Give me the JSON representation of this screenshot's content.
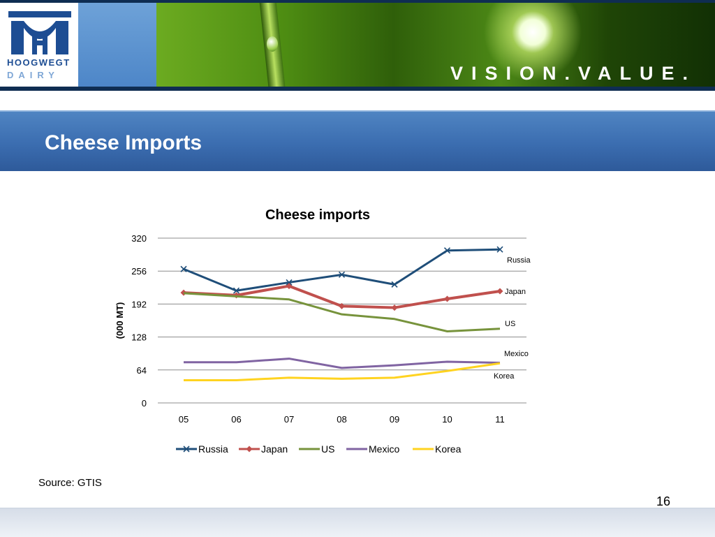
{
  "header": {
    "logo_line1": "HOOGWEGT",
    "logo_line2": "DAIRY",
    "tagline": "VISION.VALUE."
  },
  "slide": {
    "title": "Cheese Imports",
    "source": "Source: GTIS",
    "page_number": "16"
  },
  "colors": {
    "banner": "#0f2d52",
    "title_bar": "#3b6db0",
    "Russia": "#1f4e79",
    "Japan": "#c0504d",
    "US": "#77933c",
    "Mexico": "#8064a2",
    "Korea": "#ffd320"
  },
  "chart_data": {
    "type": "line",
    "title": "Cheese imports",
    "ylabel": "(000 MT)",
    "xlabel": "",
    "categories": [
      "05",
      "06",
      "07",
      "08",
      "09",
      "10",
      "11"
    ],
    "ylim": [
      0,
      320
    ],
    "yticks": [
      "0",
      "64",
      "128",
      "192",
      "256",
      "320"
    ],
    "grid": true,
    "legend_position": "bottom",
    "series": [
      {
        "name": "Russia",
        "marker": "x",
        "values": [
          260,
          218,
          234,
          249,
          230,
          296,
          298
        ]
      },
      {
        "name": "Japan",
        "marker": "diamond",
        "values": [
          214,
          209,
          227,
          188,
          185,
          202,
          217
        ]
      },
      {
        "name": "US",
        "marker": "none",
        "values": [
          213,
          207,
          201,
          172,
          163,
          139,
          144
        ]
      },
      {
        "name": "Mexico",
        "marker": "none",
        "values": [
          79,
          79,
          86,
          68,
          73,
          80,
          78
        ]
      },
      {
        "name": "Korea",
        "marker": "none",
        "values": [
          44,
          44,
          49,
          47,
          49,
          62,
          77
        ]
      }
    ]
  }
}
